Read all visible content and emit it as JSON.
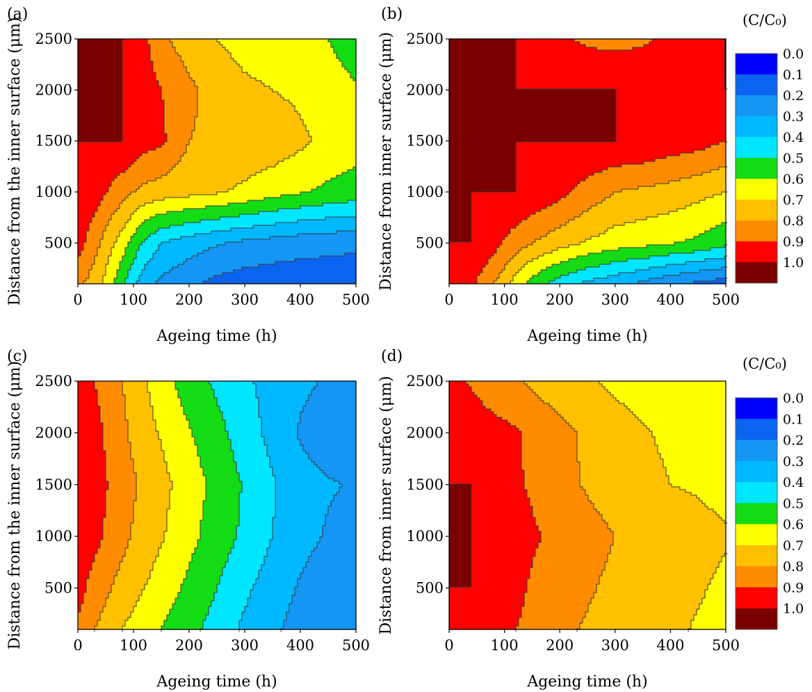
{
  "chart_data": [
    {
      "panel": "(a)",
      "type": "contour",
      "title": "",
      "xlabel": "Ageing time (h)",
      "ylabel": "Distance from the inner surface (μm)",
      "xlim": [
        0,
        500
      ],
      "ylim": [
        100,
        2500
      ],
      "xticks": [
        "0",
        "100",
        "200",
        "300",
        "400",
        "500"
      ],
      "yticks": [
        "500",
        "1000",
        "1500",
        "2000",
        "2500"
      ],
      "x": [
        0,
        20,
        40,
        60,
        80,
        100,
        120,
        150,
        200,
        250,
        300,
        350,
        400,
        450,
        500
      ],
      "y": [
        100,
        500,
        1000,
        1500,
        2000,
        2500
      ],
      "values": [
        [
          0.82,
          0.78,
          0.72,
          0.62,
          0.52,
          0.42,
          0.34,
          0.28,
          0.22,
          0.17,
          0.15,
          0.14,
          0.14,
          0.14,
          0.14
        ],
        [
          0.95,
          0.87,
          0.8,
          0.72,
          0.65,
          0.56,
          0.48,
          0.4,
          0.35,
          0.31,
          0.28,
          0.26,
          0.24,
          0.23,
          0.22
        ],
        [
          1.0,
          0.97,
          0.93,
          0.88,
          0.84,
          0.8,
          0.77,
          0.75,
          0.73,
          0.71,
          0.68,
          0.64,
          0.61,
          0.58,
          0.56
        ],
        [
          1.0,
          1.0,
          1.0,
          1.0,
          1.0,
          0.97,
          0.94,
          0.92,
          0.8,
          0.78,
          0.77,
          0.76,
          0.72,
          0.67,
          0.64
        ],
        [
          1.0,
          1.0,
          1.0,
          1.0,
          1.0,
          0.98,
          0.95,
          0.9,
          0.82,
          0.76,
          0.72,
          0.7,
          0.68,
          0.64,
          0.61
        ],
        [
          1.0,
          1.0,
          1.0,
          1.0,
          1.0,
          0.97,
          0.92,
          0.82,
          0.75,
          0.7,
          0.66,
          0.65,
          0.63,
          0.6,
          0.55
        ]
      ]
    },
    {
      "panel": "(b)",
      "type": "contour",
      "title": "",
      "xlabel": "Ageing time (h)",
      "ylabel": "Distance from inner surface (μm)",
      "xlim": [
        0,
        500
      ],
      "ylim": [
        100,
        2500
      ],
      "xticks": [
        "0",
        "100",
        "200",
        "300",
        "400",
        "500"
      ],
      "yticks": [
        "500",
        "1000",
        "1500",
        "2000",
        "2500"
      ],
      "x": [
        0,
        20,
        40,
        60,
        80,
        100,
        120,
        150,
        200,
        250,
        300,
        350,
        400,
        450,
        500
      ],
      "y": [
        100,
        500,
        1000,
        1500,
        2000,
        2500
      ],
      "values": [
        [
          1.0,
          0.98,
          0.92,
          0.86,
          0.8,
          0.74,
          0.66,
          0.56,
          0.45,
          0.38,
          0.33,
          0.28,
          0.22,
          0.18,
          0.15
        ],
        [
          1.0,
          1.0,
          1.0,
          0.98,
          0.94,
          0.89,
          0.85,
          0.8,
          0.74,
          0.69,
          0.65,
          0.63,
          0.61,
          0.58,
          0.53
        ],
        [
          1.0,
          1.0,
          1.0,
          1.0,
          1.0,
          1.0,
          1.0,
          0.98,
          0.93,
          0.86,
          0.8,
          0.78,
          0.76,
          0.73,
          0.7
        ],
        [
          1.0,
          1.0,
          1.0,
          1.0,
          1.0,
          1.0,
          1.0,
          1.0,
          1.0,
          1.0,
          1.0,
          0.99,
          0.96,
          0.94,
          0.9
        ],
        [
          1.0,
          1.0,
          1.0,
          1.0,
          1.0,
          1.0,
          1.0,
          1.0,
          1.0,
          1.0,
          1.0,
          1.0,
          1.0,
          1.0,
          1.0
        ],
        [
          1.0,
          1.0,
          1.0,
          1.0,
          1.0,
          1.0,
          1.0,
          0.97,
          0.92,
          0.88,
          0.87,
          0.88,
          0.93,
          0.98,
          1.0
        ]
      ]
    },
    {
      "panel": "(c)",
      "type": "contour",
      "title": "",
      "xlabel": "Ageing time (h)",
      "ylabel": "Distance from the inner surface (μm)",
      "xlim": [
        0,
        500
      ],
      "ylim": [
        100,
        2500
      ],
      "xticks": [
        "0",
        "100",
        "200",
        "300",
        "400",
        "500"
      ],
      "yticks": [
        "500",
        "1000",
        "1500",
        "2000",
        "2500"
      ],
      "x": [
        0,
        20,
        40,
        60,
        80,
        100,
        120,
        150,
        200,
        250,
        300,
        350,
        400,
        450,
        500
      ],
      "y": [
        100,
        500,
        1000,
        1500,
        2000,
        2500
      ],
      "values": [
        [
          0.88,
          0.82,
          0.78,
          0.74,
          0.7,
          0.67,
          0.64,
          0.6,
          0.53,
          0.46,
          0.38,
          0.32,
          0.26,
          0.22,
          0.2
        ],
        [
          0.95,
          0.88,
          0.84,
          0.8,
          0.76,
          0.73,
          0.7,
          0.65,
          0.58,
          0.5,
          0.42,
          0.35,
          0.29,
          0.25,
          0.22
        ],
        [
          1.0,
          0.95,
          0.91,
          0.87,
          0.83,
          0.79,
          0.76,
          0.71,
          0.63,
          0.55,
          0.48,
          0.4,
          0.33,
          0.29,
          0.26
        ],
        [
          1.0,
          0.96,
          0.92,
          0.89,
          0.85,
          0.81,
          0.78,
          0.73,
          0.65,
          0.57,
          0.49,
          0.41,
          0.34,
          0.31,
          0.29
        ],
        [
          1.0,
          0.95,
          0.91,
          0.87,
          0.82,
          0.78,
          0.74,
          0.69,
          0.61,
          0.53,
          0.45,
          0.37,
          0.29,
          0.24,
          0.22
        ],
        [
          1.0,
          0.92,
          0.88,
          0.84,
          0.8,
          0.76,
          0.71,
          0.64,
          0.55,
          0.48,
          0.42,
          0.36,
          0.32,
          0.29,
          0.27
        ]
      ]
    },
    {
      "panel": "(d)",
      "type": "contour",
      "title": "",
      "xlabel": "Ageing time (h)",
      "ylabel": "Distance from inner surface (μm)",
      "xlim": [
        0,
        500
      ],
      "ylim": [
        100,
        2500
      ],
      "xticks": [
        "0",
        "100",
        "200",
        "300",
        "400",
        "500"
      ],
      "yticks": [
        "500",
        "1000",
        "1500",
        "2000",
        "2500"
      ],
      "x": [
        0,
        20,
        40,
        60,
        80,
        100,
        120,
        150,
        200,
        250,
        300,
        350,
        400,
        450,
        500
      ],
      "y": [
        100,
        500,
        1000,
        1500,
        2000,
        2500
      ],
      "values": [
        [
          1.0,
          0.97,
          0.95,
          0.93,
          0.92,
          0.91,
          0.9,
          0.88,
          0.82,
          0.79,
          0.77,
          0.75,
          0.72,
          0.69,
          0.67
        ],
        [
          1.0,
          1.0,
          1.0,
          0.98,
          0.96,
          0.94,
          0.92,
          0.89,
          0.86,
          0.81,
          0.78,
          0.76,
          0.74,
          0.71,
          0.68
        ],
        [
          1.0,
          1.0,
          1.0,
          1.0,
          1.0,
          0.99,
          0.94,
          0.91,
          0.88,
          0.83,
          0.8,
          0.78,
          0.75,
          0.73,
          0.71
        ],
        [
          1.0,
          1.0,
          1.0,
          0.97,
          0.94,
          0.93,
          0.91,
          0.89,
          0.83,
          0.79,
          0.76,
          0.73,
          0.7,
          0.69,
          0.67
        ],
        [
          1.0,
          0.97,
          0.95,
          0.94,
          0.93,
          0.92,
          0.91,
          0.88,
          0.83,
          0.78,
          0.74,
          0.71,
          0.68,
          0.66,
          0.63
        ],
        [
          0.93,
          0.91,
          0.89,
          0.87,
          0.85,
          0.84,
          0.82,
          0.78,
          0.74,
          0.71,
          0.68,
          0.66,
          0.64,
          0.62,
          0.6
        ]
      ]
    }
  ],
  "colorbar": {
    "title": "(C/C₀)",
    "levels": [
      "0.0",
      "0.1",
      "0.2",
      "0.3",
      "0.4",
      "0.5",
      "0.6",
      "0.7",
      "0.8",
      "0.9",
      "1.0"
    ],
    "colors": [
      "#0000ff",
      "#0a64f0",
      "#1496f5",
      "#00b8ff",
      "#00e6ff",
      "#14dc14",
      "#ffff00",
      "#ffc000",
      "#ff8c00",
      "#ff0000",
      "#7a0000"
    ]
  },
  "line_color": "#3a3a3a"
}
